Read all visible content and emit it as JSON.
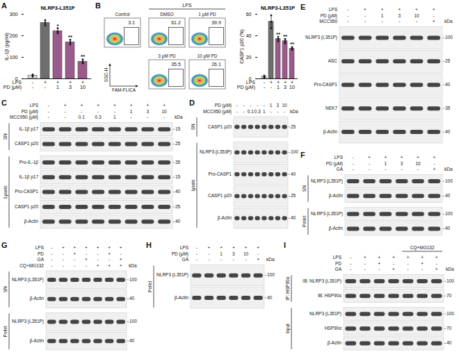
{
  "chart_data": [
    {
      "panel": "A",
      "type": "bar",
      "title": "NLRP3-L351P",
      "y_label": "IL-1β (pg/ml)",
      "conditions": [
        {
          "label": "LPS",
          "values": [
            "-",
            "+",
            "+",
            "+",
            "+"
          ]
        },
        {
          "label": "PD (μM)",
          "values": [
            "-",
            "-",
            "1",
            "3",
            "10"
          ]
        }
      ],
      "values": [
        15,
        260,
        222,
        170,
        80
      ],
      "error": [
        4,
        12,
        12,
        10,
        9
      ],
      "points": [
        [
          10,
          15,
          20
        ],
        [
          248,
          260,
          272
        ],
        [
          212,
          220,
          235
        ],
        [
          160,
          170,
          181
        ],
        [
          72,
          80,
          90
        ]
      ],
      "significance": [
        null,
        null,
        "*",
        "**",
        "**"
      ],
      "colors": [
        "#d9d9d9",
        "#6e6e6e",
        "#9b5b8c",
        "#9b5b8c",
        "#9b5b8c"
      ],
      "ylim": [
        0,
        300
      ],
      "yticks": [
        0,
        100,
        200,
        300
      ]
    },
    {
      "type": "bar",
      "title": "NLRP3-L351P",
      "y_label": "CASP1 p20 (%)",
      "conditions": [
        {
          "label": "LPS",
          "values": [
            "-",
            "+",
            "+",
            "+",
            "+"
          ]
        },
        {
          "label": "PD (μM)",
          "values": [
            "-",
            "-",
            "1",
            "3",
            "10"
          ]
        }
      ],
      "values": [
        2,
        53,
        37,
        35,
        28
      ],
      "error": [
        1,
        6,
        2,
        2,
        1.5
      ],
      "points": [
        [
          1,
          2,
          3
        ],
        [
          47,
          53,
          59
        ],
        [
          35,
          37,
          39
        ],
        [
          33,
          35,
          37
        ],
        [
          27,
          28,
          29.5
        ]
      ],
      "significance": [
        null,
        null,
        "**",
        "**",
        "**"
      ],
      "colors": [
        "#d9d9d9",
        "#6e6e6e",
        "#9b5b8c",
        "#9b5b8c",
        "#9b5b8c"
      ],
      "ylim": [
        0,
        60
      ],
      "yticks": [
        0,
        20,
        40,
        60
      ]
    }
  ],
  "flow_cytometry": {
    "panel": "B",
    "x_label": "FAM-FLICA",
    "y_label": "SSC-H",
    "group_label": "LPS",
    "plots": [
      {
        "label": "Control",
        "value": 3.1
      },
      {
        "label": "DMSO",
        "value": 61.2
      },
      {
        "label": "1 μM PD",
        "value": 39.9
      },
      {
        "label": "3 μM PD",
        "value": 35.5
      },
      {
        "label": "10 μM PD",
        "value": 26.1
      }
    ]
  },
  "blots": [
    {
      "panel": "C",
      "unit": "kDa",
      "header": [
        {
          "label": "LPS",
          "values": [
            "-",
            "+",
            "+",
            "+",
            "+",
            "+",
            "+",
            "+"
          ]
        },
        {
          "label": "PD (μM)",
          "values": [
            "-",
            "-",
            "-",
            "-",
            "-",
            "1",
            "3",
            "10"
          ]
        },
        {
          "label": "MCC950 (μM)",
          "values": [
            "-",
            "-",
            "0.1",
            "0.3",
            "1",
            "-",
            "-",
            "-"
          ]
        }
      ],
      "groups": [
        {
          "label": "SN",
          "rows": [
            {
              "label": "IL-1β p17",
              "kda": [
                15
              ]
            },
            {
              "label": "CASP1 p20",
              "kda": [
                25
              ]
            }
          ]
        },
        {
          "label": "Lysate",
          "rows": [
            {
              "label": "Pro-IL-1β",
              "kda": [
                35
              ]
            },
            {
              "label": "IL-1β p17",
              "kda": [
                15
              ]
            },
            {
              "label": "Pro-CASP1",
              "kda": [
                40
              ]
            },
            {
              "label": "CASP1 p20",
              "kda": [
                25
              ]
            },
            {
              "label": "β-Actin",
              "kda": [
                40
              ]
            }
          ]
        }
      ]
    },
    {
      "panel": "D",
      "unit": "kDa",
      "header": [
        {
          "label": "PD (μM)",
          "values": [
            "-",
            "-",
            "-",
            "-",
            "-",
            "1",
            "3",
            "10"
          ]
        },
        {
          "label": "MCC950 (μM)",
          "values": [
            "-",
            "-",
            "0.1",
            "0.3",
            "1",
            "-",
            "-",
            "-"
          ]
        }
      ],
      "groups": [
        {
          "label": "SN",
          "rows": [
            {
              "label": "CASP1 p20",
              "kda": [
                25
              ]
            }
          ]
        },
        {
          "label": "lysate",
          "rows": [
            {
              "label": "NLRP3 (L353P)",
              "kda": [
                100
              ]
            },
            {
              "label": "Pro-CASP1",
              "kda": [
                40
              ]
            },
            {
              "label": "CASP1 p20",
              "kda": [
                25
              ]
            },
            {
              "label": "β-Actin",
              "kda": [
                40
              ]
            }
          ]
        }
      ]
    },
    {
      "panel": "E",
      "unit": "kDa",
      "header": [
        {
          "label": "LPS",
          "values": [
            "-",
            "+",
            "+",
            "+",
            "+",
            "+"
          ]
        },
        {
          "label": "PD (μM)",
          "values": [
            "-",
            "-",
            "1",
            "3",
            "10",
            "-"
          ]
        },
        {
          "label": "MCC950",
          "values": [
            "-",
            "-",
            "-",
            "-",
            "-",
            "+"
          ]
        }
      ],
      "groups": [
        {
          "rows": [
            {
              "label": "NLRP3 (L351P)",
              "kda": [
                100
              ]
            },
            {
              "label": "ASC",
              "kda": [
                25
              ]
            },
            {
              "label": "Pro-CASP1",
              "kda": [
                40
              ]
            },
            {
              "label": "NEK7",
              "kda": [
                35
              ]
            },
            {
              "label": "β-Actin",
              "kda": [
                40
              ]
            }
          ]
        }
      ]
    },
    {
      "panel": "F",
      "unit": "kDa",
      "header": [
        {
          "label": "LPS",
          "values": [
            "-",
            "+",
            "+",
            "+",
            "+",
            "+"
          ]
        },
        {
          "label": "PD (μM)",
          "values": [
            "-",
            "-",
            "1",
            "3",
            "10",
            "-"
          ]
        },
        {
          "label": "GA",
          "values": [
            "-",
            "-",
            "-",
            "-",
            "-",
            "+"
          ]
        }
      ],
      "groups": [
        {
          "label": "SN",
          "rows": [
            {
              "label": "NLRP3 (L351P)",
              "kda": [
                100
              ]
            },
            {
              "label": "β-Actin",
              "kda": [
                40
              ]
            }
          ]
        },
        {
          "label": "Pellet",
          "rows": [
            {
              "label": "NLRP3 (L351P)",
              "kda": [
                100
              ]
            },
            {
              "label": "β-Actin",
              "kda": [
                40
              ]
            }
          ]
        }
      ]
    },
    {
      "panel": "G",
      "unit": "kDa",
      "header": [
        {
          "label": "LPS",
          "values": [
            "-",
            "+",
            "+",
            "+",
            "+",
            "+",
            "+"
          ]
        },
        {
          "label": "PD",
          "values": [
            "-",
            "-",
            "+",
            "-",
            "-",
            "+",
            "-"
          ]
        },
        {
          "label": "GA",
          "values": [
            "-",
            "-",
            "-",
            "+",
            "-",
            "-",
            "+"
          ]
        },
        {
          "label": "CQ+MG132",
          "values": [
            "-",
            "-",
            "-",
            "-",
            "+",
            "+",
            "+"
          ]
        }
      ],
      "groups": [
        {
          "label": "SN",
          "rows": [
            {
              "label": "NLRP3 (L351P)",
              "kda": [
                100
              ]
            },
            {
              "label": "β-Actin",
              "kda": [
                40
              ]
            }
          ]
        },
        {
          "label": "Pellet",
          "rows": [
            {
              "label": "NLRP3 (L351P)",
              "kda": [
                100
              ]
            },
            {
              "label": "β-Actin",
              "kda": [
                40
              ]
            }
          ]
        }
      ]
    },
    {
      "panel": "H",
      "unit": "kDa",
      "header": [
        {
          "label": "LPS",
          "values": [
            "-",
            "+",
            "+",
            "+",
            "+",
            "+"
          ]
        },
        {
          "label": "PD (μM)",
          "values": [
            "-",
            "-",
            "1",
            "3",
            "10",
            "-"
          ]
        },
        {
          "label": "GA",
          "values": [
            "-",
            "-",
            "-",
            "-",
            "-",
            "+"
          ]
        }
      ],
      "groups": [
        {
          "label": "Pellet",
          "rows": [
            {
              "label": "NLRP3 (L351P)",
              "kda": [
                100
              ]
            },
            {
              "label": "β-Actin",
              "kda": [
                40
              ]
            }
          ]
        }
      ]
    },
    {
      "panel": "I",
      "unit": "kDa",
      "bracket": {
        "label": "CQ+MG132",
        "span": [
          5,
          7
        ]
      },
      "header": [
        {
          "label": "LPS",
          "values": [
            "-",
            "+",
            "+",
            "+",
            "+",
            "+",
            "+"
          ]
        },
        {
          "label": "PD",
          "values": [
            "-",
            "-",
            "+",
            "-",
            "-",
            "+",
            "-"
          ]
        },
        {
          "label": "GA",
          "values": [
            "-",
            "-",
            "-",
            "+",
            "-",
            "-",
            "+"
          ]
        }
      ],
      "groups": [
        {
          "label": "IP: HSP90α",
          "rows": [
            {
              "label": "IB: NLRP3 (L351P)",
              "kda": [
                100
              ]
            },
            {
              "label": "IB: HSP90α",
              "kda": [
                70
              ]
            }
          ]
        },
        {
          "label": "Input",
          "rows": [
            {
              "label": "NLRP3 (L351P)",
              "kda": [
                100
              ]
            },
            {
              "label": "HSP90α",
              "kda": [
                70
              ]
            },
            {
              "label": "β-Actin",
              "kda": [
                40
              ]
            }
          ]
        }
      ]
    }
  ]
}
